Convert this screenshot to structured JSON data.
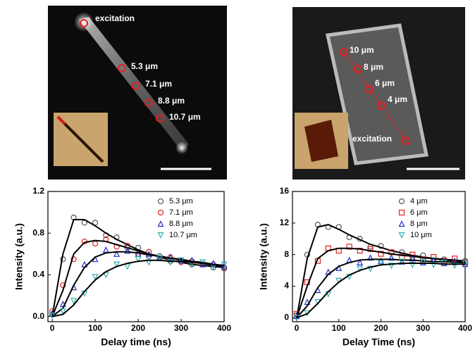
{
  "images": [
    {
      "labels": [
        "excitation",
        "5.3 μm",
        "7.1 μm",
        "8.8 μm",
        "10.7 μm"
      ]
    },
    {
      "labels": [
        "10 μm",
        "8 μm",
        "6 μm",
        "4 μm",
        "excitation"
      ]
    }
  ],
  "chart_data": [
    {
      "type": "scatter",
      "xlabel": "Delay time (ns)",
      "ylabel": "Intensity (a.u.)",
      "fit_color": "#000000",
      "x": [
        0,
        25,
        50,
        75,
        100,
        125,
        150,
        175,
        200,
        225,
        250,
        275,
        300,
        325,
        350,
        375,
        400
      ],
      "xlim": [
        -10,
        400
      ],
      "xticks": [
        0,
        100,
        200,
        300,
        400
      ],
      "ylim": [
        -0.05,
        1.2
      ],
      "yticks": [
        {
          "value": 0,
          "label": "0.0"
        },
        0.4,
        0.8,
        1.2
      ],
      "legend": "top-right",
      "series": [
        {
          "name": "5.3 μm",
          "color": "#555555",
          "marker": "circle",
          "values": [
            0.02,
            0.55,
            0.95,
            0.9,
            0.9,
            0.78,
            0.76,
            0.66,
            0.66,
            0.58,
            0.58,
            0.53,
            0.53,
            0.5,
            0.5,
            0.47,
            0.46
          ],
          "fit": [
            0,
            0.6,
            0.93,
            0.93,
            0.87,
            0.8,
            0.74,
            0.69,
            0.64,
            0.6,
            0.57,
            0.54,
            0.52,
            0.5,
            0.49,
            0.48,
            0.47
          ]
        },
        {
          "name": "7.1 μm",
          "color": "#e02020",
          "marker": "circle",
          "values": [
            0.05,
            0.3,
            0.55,
            0.72,
            0.7,
            0.74,
            0.67,
            0.68,
            0.6,
            0.62,
            0.56,
            0.57,
            0.52,
            0.53,
            0.5,
            0.5,
            0.47
          ],
          "fit": [
            0,
            0.25,
            0.6,
            0.71,
            0.73,
            0.72,
            0.69,
            0.66,
            0.63,
            0.6,
            0.58,
            0.56,
            0.54,
            0.52,
            0.51,
            0.49,
            0.48
          ]
        },
        {
          "name": "8.8 μm",
          "color": "#2030d0",
          "marker": "triangle",
          "values": [
            0.03,
            0.12,
            0.28,
            0.5,
            0.55,
            0.64,
            0.6,
            0.63,
            0.6,
            0.6,
            0.56,
            0.57,
            0.54,
            0.54,
            0.5,
            0.51,
            0.48
          ],
          "fit": [
            0,
            0.08,
            0.3,
            0.47,
            0.57,
            0.61,
            0.62,
            0.62,
            0.61,
            0.59,
            0.58,
            0.56,
            0.55,
            0.53,
            0.52,
            0.5,
            0.49
          ]
        },
        {
          "name": "10.7 μm",
          "color": "#30b0b0",
          "marker": "triangle-down",
          "values": [
            0.01,
            0.05,
            0.15,
            0.22,
            0.38,
            0.4,
            0.5,
            0.48,
            0.55,
            0.52,
            0.56,
            0.52,
            0.54,
            0.5,
            0.52,
            0.48,
            0.5
          ],
          "fit": [
            0,
            0.02,
            0.11,
            0.24,
            0.35,
            0.43,
            0.48,
            0.51,
            0.53,
            0.54,
            0.54,
            0.53,
            0.53,
            0.52,
            0.51,
            0.5,
            0.49
          ]
        }
      ]
    },
    {
      "type": "scatter",
      "xlabel": "Delay Time (ns)",
      "ylabel": "Intensity (a.u.)",
      "fit_color": "#000000",
      "x": [
        0,
        25,
        50,
        75,
        100,
        125,
        150,
        175,
        200,
        225,
        250,
        275,
        300,
        325,
        350,
        375,
        400
      ],
      "xlim": [
        -10,
        400
      ],
      "xticks": [
        0,
        100,
        200,
        300,
        400
      ],
      "ylim": [
        -0.5,
        16
      ],
      "yticks": [
        0,
        4,
        8,
        12,
        16
      ],
      "legend": "top-right",
      "series": [
        {
          "name": "4 μm",
          "color": "#555555",
          "marker": "circle",
          "values": [
            0.3,
            8,
            11.8,
            11.5,
            11.5,
            10.2,
            10,
            9,
            9.1,
            8.3,
            8.3,
            7.6,
            7.9,
            7.2,
            7.4,
            7,
            7.2
          ],
          "fit": [
            0,
            7.5,
            11.5,
            11.8,
            11.2,
            10.5,
            9.9,
            9.3,
            8.9,
            8.5,
            8.2,
            7.9,
            7.7,
            7.5,
            7.3,
            7.2,
            7.1
          ]
        },
        {
          "name": "6 μm",
          "color": "#e02020",
          "marker": "square",
          "values": [
            0.5,
            4.5,
            7.2,
            8.8,
            8.5,
            9,
            8.5,
            8.7,
            8.1,
            8.3,
            7.7,
            8,
            7.4,
            7.7,
            7.2,
            7.5,
            7
          ],
          "fit": [
            0,
            4,
            7.5,
            8.5,
            8.8,
            8.8,
            8.7,
            8.5,
            8.3,
            8.1,
            7.9,
            7.8,
            7.6,
            7.5,
            7.4,
            7.3,
            7.2
          ]
        },
        {
          "name": "8 μm",
          "color": "#2030d0",
          "marker": "triangle",
          "values": [
            0.2,
            2,
            3.5,
            5.8,
            6.3,
            7.3,
            7,
            7.6,
            7.2,
            7.6,
            7.1,
            7.5,
            7,
            7.3,
            6.9,
            7.2,
            6.8
          ],
          "fit": [
            0,
            1.5,
            3.8,
            5.5,
            6.5,
            7,
            7.3,
            7.4,
            7.4,
            7.4,
            7.3,
            7.3,
            7.2,
            7.1,
            7.1,
            7,
            7
          ]
        },
        {
          "name": "10 μm",
          "color": "#30b0b0",
          "marker": "triangle-down",
          "values": [
            0,
            0.6,
            2,
            3,
            4.7,
            5.2,
            6.2,
            6.2,
            6.9,
            6.6,
            7.1,
            6.7,
            7.1,
            6.7,
            7,
            6.6,
            6.9
          ],
          "fit": [
            0,
            0.5,
            1.8,
            3.3,
            4.5,
            5.4,
            6,
            6.4,
            6.7,
            6.8,
            6.9,
            6.9,
            6.9,
            6.9,
            6.8,
            6.8,
            6.8
          ]
        }
      ]
    }
  ]
}
